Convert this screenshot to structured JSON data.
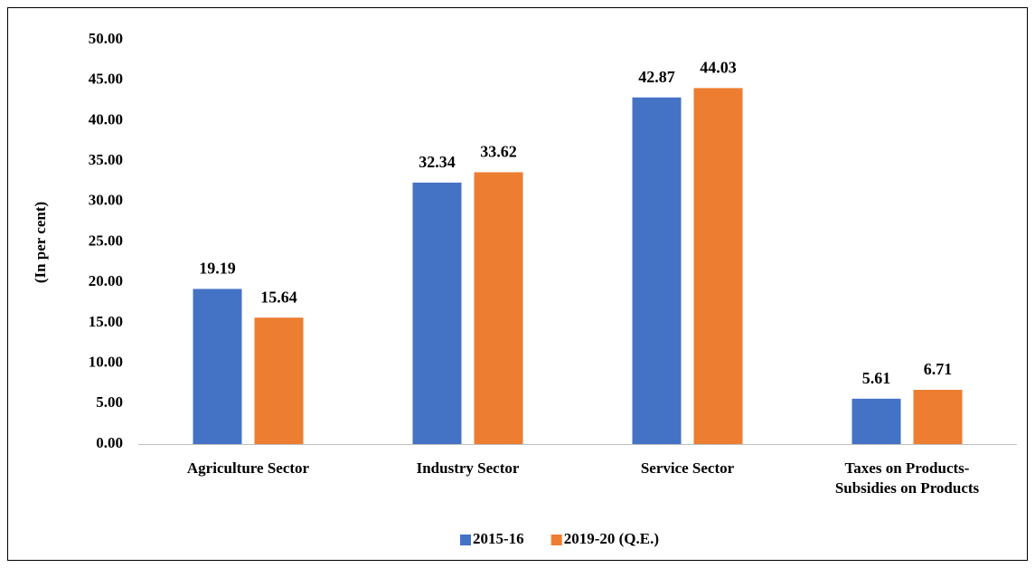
{
  "chart_data": {
    "type": "bar",
    "y_label": "(In per cent)",
    "categories": [
      "Agriculture Sector",
      "Industry Sector",
      "Service Sector",
      "Taxes on Products-\nSubsidies on Products"
    ],
    "series": [
      {
        "name": "2015-16",
        "color": "#4472c4",
        "values": [
          19.19,
          32.34,
          42.87,
          5.61
        ]
      },
      {
        "name": "2019-20 (Q.E.)",
        "color": "#ed7d31",
        "values": [
          15.64,
          33.62,
          44.03,
          6.71
        ]
      }
    ],
    "ylim": [
      0,
      50
    ],
    "yticks": [
      {
        "value": 0,
        "label": "0.00"
      },
      {
        "value": 5,
        "label": "5.00"
      },
      {
        "value": 10,
        "label": "10.00"
      },
      {
        "value": 15,
        "label": "15.00"
      },
      {
        "value": 20,
        "label": "20.00"
      },
      {
        "value": 25,
        "label": "25.00"
      },
      {
        "value": 30,
        "label": "30.00"
      },
      {
        "value": 35,
        "label": "35.00"
      },
      {
        "value": 40,
        "label": "40.00"
      },
      {
        "value": 45,
        "label": "45.00"
      },
      {
        "value": 50,
        "label": "50.00"
      }
    ],
    "grid": false,
    "legend": "bottom"
  }
}
